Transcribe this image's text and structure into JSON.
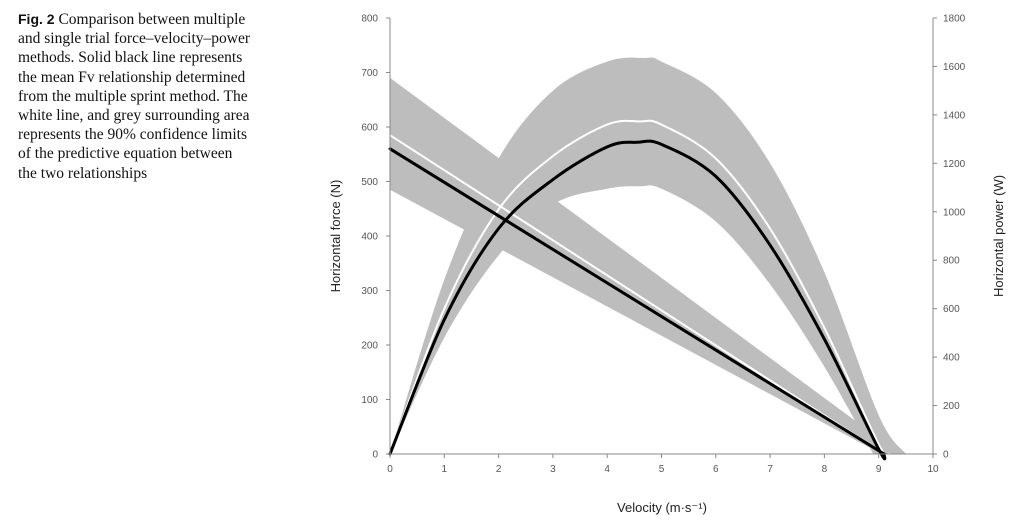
{
  "caption": {
    "label": "Fig. 2",
    "text": "Comparison between multiple and single trial force–velocity–power methods. Solid black line represents the mean Fv relationship determined from the multiple sprint method. The white line, and grey surrounding area represents the 90% confidence limits of the predictive equation between the two relationships"
  },
  "chart_data": {
    "type": "line",
    "title": "",
    "xlabel": "Velocity (m·s⁻¹)",
    "ylabel": "Horizontal force (N)",
    "y2label": "Horizontal power (W)",
    "xlim": [
      0,
      10
    ],
    "ylim": [
      0,
      800
    ],
    "y2lim": [
      0,
      1800
    ],
    "xticks": [
      "0",
      "1",
      "2",
      "3",
      "4",
      "5",
      "6",
      "7",
      "8",
      "9",
      "10"
    ],
    "yticks": [
      "0",
      "100",
      "200",
      "300",
      "400",
      "500",
      "600",
      "700",
      "800"
    ],
    "y2ticks": [
      "0",
      "200",
      "400",
      "600",
      "800",
      "1000",
      "1200",
      "1400",
      "1600",
      "1800"
    ],
    "grid": false,
    "colors": {
      "band": "#bdbdbd",
      "mean": "#000000",
      "predicted": "#ffffff",
      "axis": "#888888"
    },
    "series": [
      {
        "axis": "left",
        "kind": "mean-line",
        "x": [
          0,
          9.1
        ],
        "y": [
          560,
          0
        ]
      },
      {
        "axis": "left",
        "kind": "predicted-line",
        "x": [
          0,
          9.1
        ],
        "y": [
          585,
          0
        ]
      },
      {
        "axis": "left",
        "kind": "confidence-band",
        "upper": {
          "x": [
            0,
            9.4
          ],
          "y": [
            690,
            0
          ]
        },
        "lower": {
          "x": [
            0,
            9.05
          ],
          "y": [
            485,
            0
          ]
        }
      },
      {
        "axis": "right",
        "kind": "mean-line",
        "x": [
          0,
          1,
          2,
          3,
          4,
          4.55,
          5,
          6,
          7,
          8,
          9,
          9.1
        ],
        "y": [
          0,
          555,
          931,
          1133,
          1268,
          1287,
          1278,
          1146,
          862,
          474,
          20,
          0
        ]
      },
      {
        "axis": "right",
        "kind": "predicted-line",
        "x": [
          0,
          1,
          2,
          3,
          4,
          4.6,
          5,
          6,
          7,
          8,
          9,
          9.2
        ],
        "y": [
          0,
          600,
          1010,
          1230,
          1360,
          1373,
          1360,
          1220,
          930,
          520,
          40,
          0
        ]
      },
      {
        "axis": "right",
        "kind": "confidence-band",
        "upper": {
          "x": [
            0,
            1,
            2,
            3,
            4,
            4.7,
            5,
            6,
            7,
            8,
            9,
            9.5
          ],
          "y": [
            0,
            720,
            1220,
            1500,
            1620,
            1635,
            1620,
            1490,
            1200,
            750,
            160,
            0
          ]
        },
        "lower": {
          "x": [
            0,
            1,
            2,
            3,
            4,
            4.6,
            5,
            6,
            7,
            8,
            8.9
          ],
          "y": [
            0,
            480,
            820,
            1030,
            1095,
            1105,
            1095,
            960,
            700,
            360,
            0
          ]
        }
      }
    ]
  }
}
